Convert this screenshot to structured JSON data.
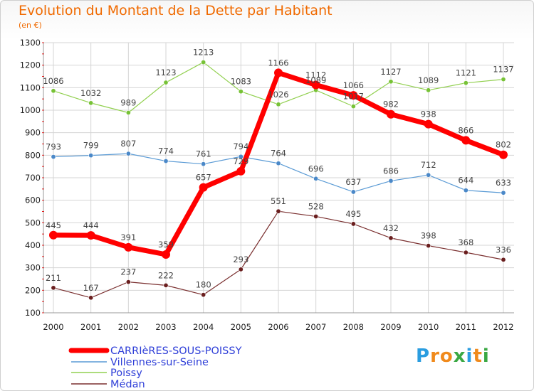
{
  "header": {
    "title": "Evolution du Montant de la Dette par Habitant",
    "subtitle": "(en €)"
  },
  "logo": {
    "text": "Proxiti",
    "letters": [
      "P",
      "r",
      "o",
      "x",
      "i",
      "t",
      "i"
    ],
    "colors": [
      "#2a9de0",
      "#f08a1c",
      "#f08a1c",
      "#3aa843",
      "#2a9de0",
      "#f08a1c",
      "#3aa843"
    ]
  },
  "chart_data": {
    "type": "line",
    "title": "Evolution du Montant de la Dette par Habitant",
    "subtitle": "(en €)",
    "x": [
      "2000",
      "2001",
      "2002",
      "2003",
      "2004",
      "2005",
      "2006",
      "2007",
      "2008",
      "2009",
      "2010",
      "2011",
      "2012"
    ],
    "y_ticks": [
      100,
      200,
      300,
      400,
      500,
      600,
      700,
      800,
      900,
      1000,
      1100,
      1200,
      1300
    ],
    "ylim": [
      100,
      1300
    ],
    "grid": true,
    "legend_position": "bottom-left",
    "series": [
      {
        "name": "CARRIèRES-SOUS-POISSY",
        "color": "#ff0000",
        "width": 7,
        "values": [
          445,
          444,
          391,
          359,
          657,
          729,
          1166,
          1112,
          1066,
          982,
          938,
          866,
          802
        ],
        "labels": [
          "445",
          "444",
          "391",
          "359",
          "657",
          "729",
          "1166",
          "1112",
          "1066",
          "982",
          "938",
          "866",
          "802"
        ]
      },
      {
        "name": "Villennes-sur-Seine",
        "color": "#5b9bd5",
        "width": 1.2,
        "values": [
          793,
          799,
          807,
          774,
          761,
          794,
          764,
          696,
          637,
          686,
          712,
          644,
          633
        ],
        "labels": [
          "793",
          "799",
          "807",
          "774",
          "761",
          "794",
          "764",
          "696",
          "637",
          "686",
          "712",
          "644",
          "633"
        ]
      },
      {
        "name": "Poissy",
        "color": "#92d050",
        "width": 1.2,
        "values": [
          1086,
          1032,
          989,
          1123,
          1213,
          1083,
          1026,
          1089,
          1017,
          1127,
          1089,
          1121,
          1137
        ],
        "labels": [
          "1086",
          "1032",
          "989",
          "1123",
          "1213",
          "1083",
          "1026",
          "1089",
          "1017",
          "1127",
          "1089",
          "1121",
          "1137"
        ]
      },
      {
        "name": "Médan",
        "color": "#7a2f2f",
        "width": 1.2,
        "values": [
          211,
          167,
          237,
          222,
          180,
          293,
          551,
          528,
          495,
          432,
          398,
          368,
          336
        ],
        "labels": [
          "211",
          "167",
          "237",
          "222",
          "180",
          "293",
          "551",
          "528",
          "495",
          "432",
          "398",
          "368",
          "336"
        ]
      }
    ]
  }
}
